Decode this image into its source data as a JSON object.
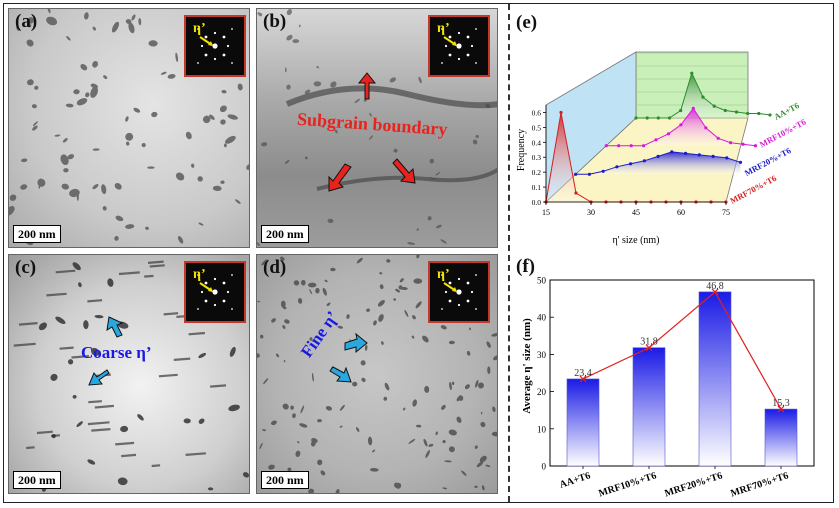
{
  "panels": {
    "a": {
      "label": "(a)",
      "scale": "200 nm",
      "fft_label": "η’"
    },
    "b": {
      "label": "(b)",
      "scale": "200 nm",
      "fft_label": "η’",
      "annotation": "Subgrain boundary"
    },
    "c": {
      "label": "(c)",
      "scale": "200 nm",
      "fft_label": "η’",
      "annotation": "Coarse η’"
    },
    "d": {
      "label": "(d)",
      "scale": "200 nm",
      "fft_label": "η’",
      "annotation": "Fine η’"
    },
    "e": {
      "label": "(e)"
    },
    "f": {
      "label": "(f)"
    }
  },
  "colors": {
    "aa": "#2e8b2e",
    "mrf10": "#d81bd8",
    "mrf20": "#1c1ccf",
    "mrf70": "#d42020",
    "bar_top": "#1a1ae6",
    "annotation_red": "#e8231e",
    "annotation_blue": "#1919e6",
    "arrow_cyan": "#29a8e0",
    "fft_border": "#c0392b"
  },
  "chart_data": [
    {
      "type": "line",
      "panel": "(e)",
      "xlabel": "η' size (nm)",
      "ylabel": "Frequency",
      "x_ticks": [
        15,
        30,
        45,
        60,
        75
      ],
      "y_ticks": [
        0.0,
        0.1,
        0.2,
        0.3,
        0.4,
        0.5,
        0.6
      ],
      "ylim": [
        0,
        0.65
      ],
      "series": [
        {
          "name": "AA+T6",
          "color": "#2e8b2e",
          "x": [
            15,
            20,
            25,
            30,
            35,
            40,
            45,
            50,
            55,
            60,
            65,
            70,
            75
          ],
          "values": [
            0.0,
            0.0,
            0.0,
            0.0,
            0.05,
            0.3,
            0.14,
            0.08,
            0.05,
            0.04,
            0.03,
            0.03,
            0.02
          ]
        },
        {
          "name": "MRF10%+T6",
          "color": "#d81bd8",
          "x": [
            15,
            20,
            25,
            30,
            35,
            40,
            45,
            50,
            55,
            60,
            65,
            70,
            75
          ],
          "values": [
            0.0,
            0.0,
            0.0,
            0.0,
            0.04,
            0.08,
            0.14,
            0.25,
            0.12,
            0.05,
            0.02,
            0.01,
            0.0
          ]
        },
        {
          "name": "MRF20%+T6",
          "color": "#1c1ccf",
          "x": [
            15,
            20,
            25,
            30,
            35,
            40,
            45,
            50,
            55,
            60,
            65,
            70,
            75
          ],
          "values": [
            0.0,
            0.0,
            0.02,
            0.05,
            0.07,
            0.09,
            0.12,
            0.15,
            0.14,
            0.13,
            0.12,
            0.11,
            0.08
          ]
        },
        {
          "name": "MRF70%+T6",
          "color": "#d42020",
          "x": [
            15,
            20,
            25,
            30,
            35,
            40,
            45,
            50,
            55,
            60,
            65,
            70,
            75
          ],
          "values": [
            0.0,
            0.6,
            0.06,
            0.0,
            0.0,
            0.0,
            0.0,
            0.0,
            0.0,
            0.0,
            0.0,
            0.0,
            0.0
          ]
        }
      ]
    },
    {
      "type": "bar",
      "panel": "(f)",
      "ylabel": "Average η' size (nm)",
      "categories": [
        "AA+T6",
        "MRF10%+T6",
        "MRF20%+T6",
        "MRF70%+T6"
      ],
      "values": [
        23.4,
        31.8,
        46.8,
        15.3
      ],
      "value_labels": [
        "23.4",
        "31.8",
        "46.8",
        "15.3"
      ],
      "y_ticks": [
        0,
        10,
        20,
        30,
        40,
        50
      ],
      "ylim": [
        0,
        50
      ],
      "line_overlay": true
    }
  ]
}
